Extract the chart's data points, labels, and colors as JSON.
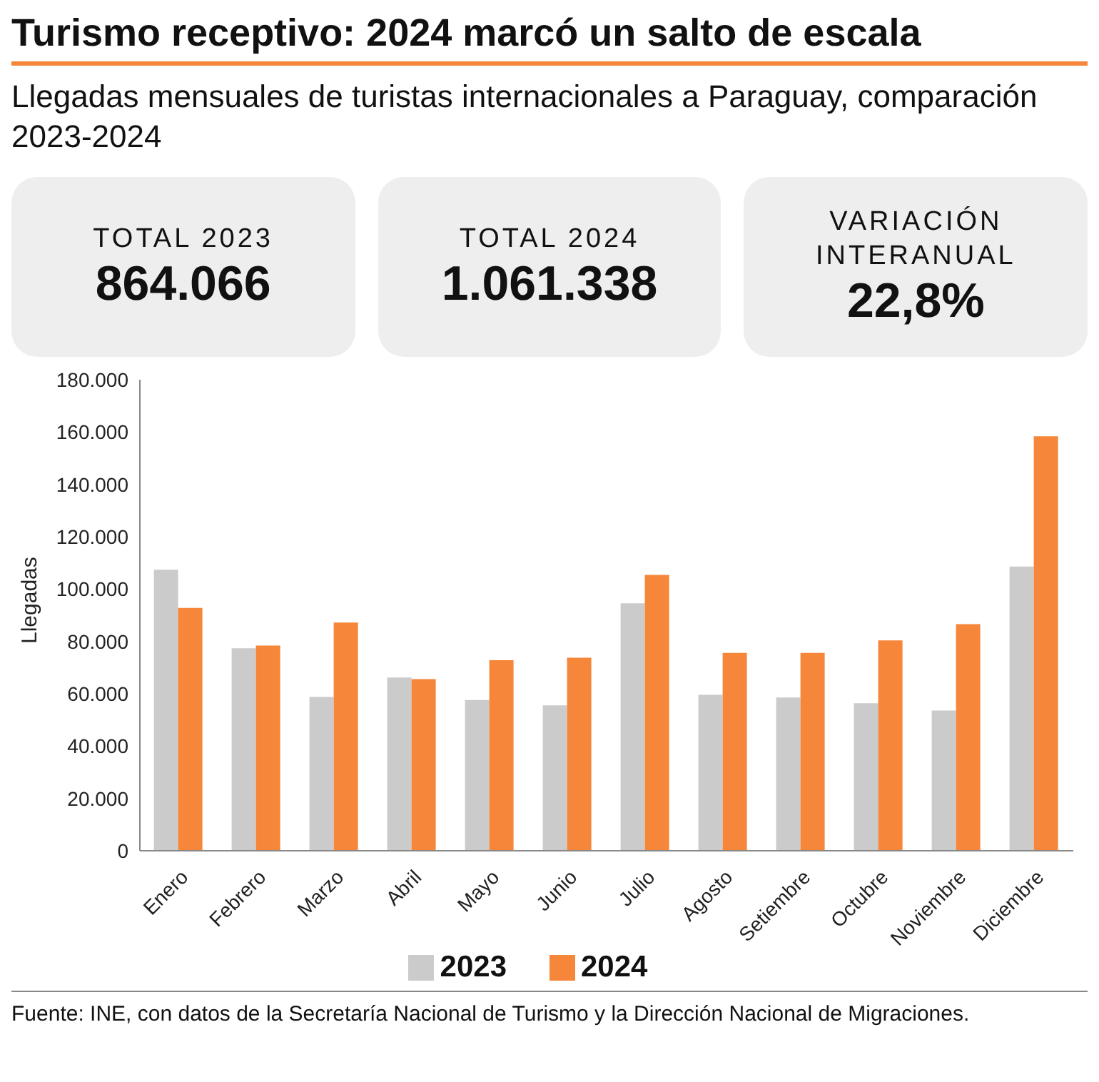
{
  "chart_data": {
    "type": "bar",
    "title": "Turismo receptivo: 2024 marcó un salto de escala",
    "subtitle": "Llegadas mensuales de turistas internacionales a Paraguay, comparación 2023-2024",
    "ylabel": "Llegadas",
    "categories": [
      "Enero",
      "Febrero",
      "Marzo",
      "Abril",
      "Mayo",
      "Junio",
      "Julio",
      "Agosto",
      "Setiembre",
      "Octubre",
      "Noviembre",
      "Diciembre"
    ],
    "series": [
      {
        "name": "2023",
        "color": "#cbcbcb",
        "values": [
          107400,
          77400,
          58800,
          66200,
          57600,
          55600,
          94600,
          59600,
          58600,
          56400,
          53600,
          108600
        ]
      },
      {
        "name": "2024",
        "color": "#f5863a",
        "values": [
          92800,
          78400,
          87200,
          65600,
          72800,
          73800,
          105400,
          75600,
          75600,
          80400,
          86600,
          158400
        ]
      }
    ],
    "ylim": [
      0,
      180000
    ],
    "yticks": [
      {
        "value": 0,
        "label": "0"
      },
      {
        "value": 20000,
        "label": "20.000"
      },
      {
        "value": 40000,
        "label": "40.000"
      },
      {
        "value": 60000,
        "label": "60.000"
      },
      {
        "value": 80000,
        "label": "80.000"
      },
      {
        "value": 100000,
        "label": "100.000"
      },
      {
        "value": 120000,
        "label": "120.000"
      },
      {
        "value": 140000,
        "label": "140.000"
      },
      {
        "value": 160000,
        "label": "160.000"
      },
      {
        "value": 180000,
        "label": "180.000"
      }
    ],
    "grid": false,
    "legend": "bottom",
    "annotations": [
      "TOTAL 2023",
      "864.066",
      "TOTAL 2024",
      "1.061.338",
      "VARIACIÓN INTERANUAL",
      "22,8%",
      "Fuente: INE, con datos de la Secretaría Nacional de Turismo y la Dirección Nacional de Migraciones."
    ]
  }
}
